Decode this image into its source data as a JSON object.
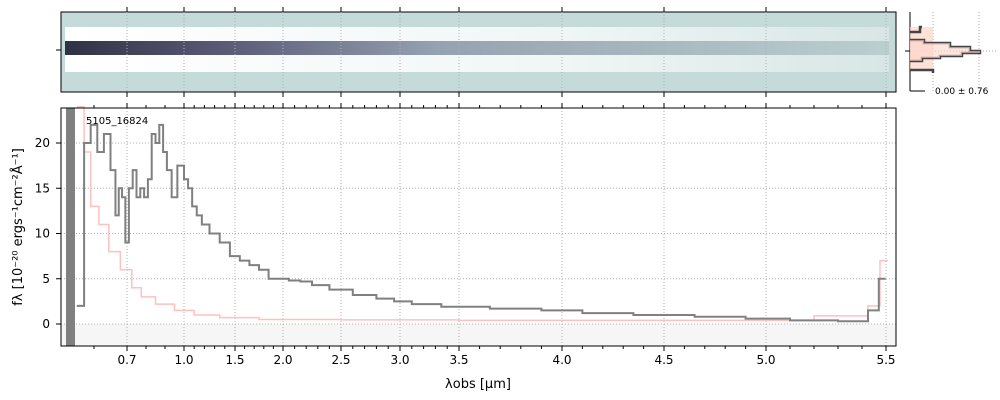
{
  "chart_data": {
    "type": "line",
    "object_label": "5105_16824",
    "xlabel": "λobs [μm]",
    "ylabel": "fλ [10⁻²⁰ ergs⁻¹cm⁻²Å⁻¹]",
    "xticks": [
      0.7,
      1.0,
      1.5,
      2.0,
      2.5,
      3.0,
      3.5,
      4.0,
      4.5,
      5.0,
      5.5
    ],
    "xtick_labels": [
      "0.7",
      "1.0",
      "1.5",
      "2.0",
      "2.5",
      "3.0",
      "3.5",
      "4.0",
      "4.5",
      "5.0",
      "5.5"
    ],
    "yticks": [
      0,
      5,
      10,
      15,
      20
    ],
    "ytick_labels": [
      "0",
      "5",
      "10",
      "15",
      "20"
    ],
    "ylim": [
      -2.4,
      24
    ],
    "xlim": [
      0.5,
      5.53
    ],
    "grid": true,
    "series": [
      {
        "role": "flux",
        "color": "#808080",
        "x": [
          0.56,
          0.58,
          0.6,
          0.62,
          0.64,
          0.66,
          0.67,
          0.68,
          0.69,
          0.7,
          0.72,
          0.74,
          0.76,
          0.78,
          0.8,
          0.82,
          0.84,
          0.86,
          0.88,
          0.9,
          0.92,
          0.95,
          0.98,
          1.02,
          1.06,
          1.1,
          1.15,
          1.2,
          1.3,
          1.4,
          1.5,
          1.6,
          1.7,
          1.8,
          1.9,
          2.0,
          2.1,
          2.2,
          2.3,
          2.5,
          2.7,
          2.9,
          3.0,
          3.2,
          3.5,
          3.8,
          4.0,
          4.2,
          4.5,
          4.8,
          5.0,
          5.2,
          5.4,
          5.45,
          5.49
        ],
        "y": [
          2,
          20,
          22,
          19,
          21,
          17,
          12,
          15,
          14,
          9,
          15,
          17,
          14,
          15,
          14,
          16,
          21,
          20,
          22,
          19,
          17,
          14,
          17.5,
          16,
          15,
          13,
          12,
          11,
          10,
          9,
          7.5,
          7,
          6.5,
          6,
          5,
          5,
          4.8,
          4.7,
          4.3,
          3.8,
          3.2,
          2.8,
          2.5,
          2.2,
          1.9,
          1.7,
          1.5,
          1.2,
          1.0,
          0.8,
          0.6,
          0.4,
          0.3,
          1.5,
          5
        ]
      },
      {
        "role": "error",
        "color": "#ffc0c0",
        "x": [
          0.56,
          0.58,
          0.6,
          0.63,
          0.66,
          0.7,
          0.75,
          0.8,
          0.9,
          1.0,
          1.2,
          1.5,
          2.0,
          3.0,
          4.0,
          5.0,
          5.4,
          5.45,
          5.5
        ],
        "y": [
          24,
          19,
          13,
          11,
          8,
          6,
          4,
          3,
          2.2,
          1.5,
          1.0,
          0.7,
          0.5,
          0.45,
          0.4,
          0.4,
          0.9,
          2,
          7
        ]
      }
    ],
    "histogram": {
      "label": "0.00 ± 0.76"
    }
  }
}
